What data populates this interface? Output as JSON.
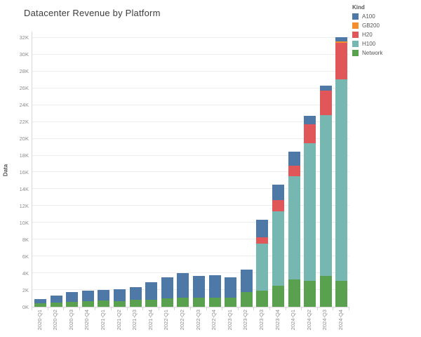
{
  "title": "Datacenter Revenue by Platform",
  "chart_data": {
    "type": "bar",
    "stacked": true,
    "title": "Datacenter Revenue by Platform",
    "xlabel": "",
    "ylabel": "Data",
    "legend_title": "Kind",
    "legend_position": "top-right",
    "grid": true,
    "unit": "K",
    "ylim": [
      0,
      32
    ],
    "ytick_step": 2,
    "ytick_labels": [
      "0K",
      "2K",
      "4K",
      "6K",
      "8K",
      "10K",
      "12K",
      "14K",
      "16K",
      "18K",
      "20K",
      "22K",
      "24K",
      "26K",
      "28K",
      "30K",
      "32K"
    ],
    "categories": [
      "2020-Q1",
      "2020-Q2",
      "2020-Q3",
      "2020-Q4",
      "2021-Q1",
      "2021-Q2",
      "2021-Q3",
      "2021-Q4",
      "2022-Q1",
      "2022-Q2",
      "2022-Q3",
      "2022-Q4",
      "2023-Q1",
      "2023-Q2",
      "2023-Q3",
      "2023-Q4",
      "2024-Q1",
      "2024-Q2",
      "2024-Q3",
      "2024-Q4"
    ],
    "stack_order_bottom_to_top": [
      "Network",
      "H100",
      "H20",
      "GB200",
      "A100"
    ],
    "series": [
      {
        "name": "A100",
        "color": "#4e79a7",
        "values": [
          0.5,
          0.8,
          1.2,
          1.3,
          1.25,
          1.35,
          1.55,
          2.05,
          2.5,
          2.95,
          2.65,
          2.7,
          2.45,
          2.65,
          2.1,
          1.8,
          1.7,
          1.0,
          0.6,
          0.5
        ]
      },
      {
        "name": "GB200",
        "color": "#f28e2b",
        "values": [
          0,
          0,
          0,
          0,
          0,
          0,
          0,
          0,
          0,
          0,
          0,
          0,
          0,
          0,
          0,
          0,
          0,
          0,
          0,
          0.15
        ]
      },
      {
        "name": "H20",
        "color": "#e15759",
        "values": [
          0,
          0,
          0,
          0,
          0,
          0,
          0,
          0,
          0,
          0,
          0,
          0,
          0,
          0,
          0.8,
          1.3,
          1.3,
          2.2,
          2.9,
          4.3
        ]
      },
      {
        "name": "H100",
        "color": "#76b7b2",
        "values": [
          0,
          0,
          0,
          0,
          0,
          0,
          0,
          0,
          0,
          0,
          0,
          0,
          0,
          0,
          5.6,
          8.9,
          12.2,
          16.4,
          19.1,
          24.0
        ]
      },
      {
        "name": "Network",
        "color": "#59a14f",
        "values": [
          0.45,
          0.5,
          0.55,
          0.65,
          0.75,
          0.7,
          0.8,
          0.85,
          1.0,
          1.05,
          1.05,
          1.1,
          1.1,
          1.75,
          1.9,
          2.5,
          3.3,
          3.1,
          3.7,
          3.1
        ]
      }
    ],
    "totals": [
      0.95,
      1.3,
      1.75,
      1.95,
      2.0,
      2.05,
      2.35,
      2.9,
      3.5,
      4.0,
      3.7,
      3.8,
      3.55,
      4.4,
      10.4,
      14.5,
      18.5,
      22.7,
      26.3,
      32.05
    ]
  }
}
